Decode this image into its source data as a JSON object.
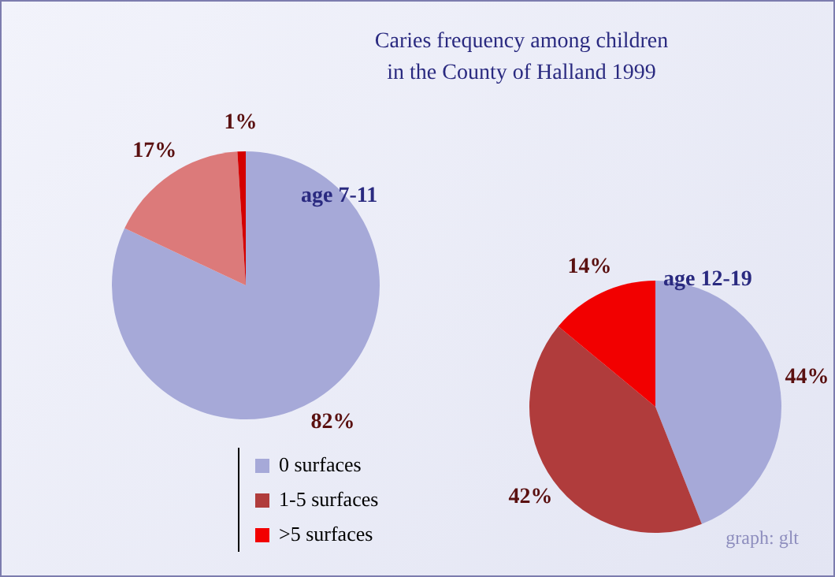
{
  "chart_data": [
    {
      "type": "pie",
      "title": "Caries frequency among children\nin the County of Halland 1999",
      "subtitle": "age 7-11",
      "categories": [
        null,
        null,
        null
      ],
      "values": [
        82,
        17,
        1
      ],
      "value_labels": [
        "82%",
        "17%",
        "1%"
      ],
      "colors": [
        "#a6a9d8",
        "#dc7a7a",
        "#d40000"
      ]
    },
    {
      "type": "pie",
      "subtitle": "age 12-19",
      "categories": [
        "0 surfaces",
        "1-5 surfaces",
        ">5 surfaces"
      ],
      "values": [
        44,
        42,
        14
      ],
      "value_labels": [
        "44%",
        "42%",
        "14%"
      ],
      "colors": [
        "#a6a9d8",
        "#b03c3c",
        "#f20000"
      ],
      "legend": "left",
      "annotations": [
        "graph: glt"
      ]
    }
  ]
}
